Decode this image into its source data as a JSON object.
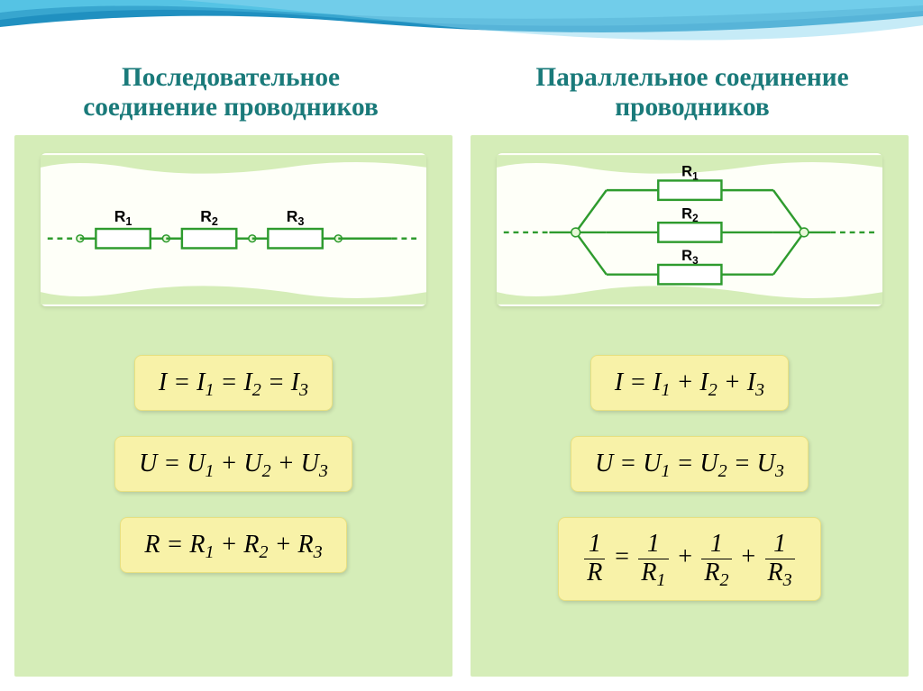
{
  "colors": {
    "header_text": "#1a7a7a",
    "header_fontsize_pt": 22,
    "header_fontweight": "bold",
    "panel_bg": "#d5edb8",
    "diagram_bg": "#fefff8",
    "diagram_shadow": "#c8e0a8",
    "formula_bg": "#f8f2a8",
    "formula_border": "#e8e080",
    "formula_text": "#000000",
    "formula_fontsize_pt": 21,
    "resistor_stroke": "#2e9b2e",
    "resistor_fill": "#ffffff",
    "wire_color": "#2e9b2e",
    "node_fill": "#e8f8d8",
    "dash_color": "#2e9b2e",
    "label_color": "#000000",
    "wave_colors": [
      "#5bc8e8",
      "#3ba8d0",
      "#2090c0",
      "#8dd8f0"
    ]
  },
  "left": {
    "title_line1": "Последовательное",
    "title_line2": "соединение проводников",
    "circuit": {
      "type": "series",
      "resistors": [
        "R₁",
        "R₂",
        "R₃"
      ],
      "stroke_width": 2.5,
      "resistor_w": 62,
      "resistor_h": 22,
      "node_radius": 4
    },
    "formulas": [
      {
        "type": "plain",
        "text": "I = I₁ = I₂ = I₃"
      },
      {
        "type": "plain",
        "text": "U = U₁ + U₂ + U₃"
      },
      {
        "type": "plain",
        "text": "R = R₁ + R₂ + R₃"
      }
    ]
  },
  "right": {
    "title_line1": "Параллельное соединение",
    "title_line2": "проводников",
    "circuit": {
      "type": "parallel",
      "resistors": [
        "R₁",
        "R₂",
        "R₃"
      ],
      "stroke_width": 2.5,
      "resistor_w": 72,
      "resistor_h": 22,
      "node_radius": 5,
      "row_gap": 48
    },
    "formulas": [
      {
        "type": "plain",
        "text": "I = I₁ + I₂ + I₃"
      },
      {
        "type": "plain",
        "text": "U = U₁ = U₂ = U₃"
      },
      {
        "type": "frac",
        "lhs_num": "1",
        "lhs_den": "R",
        "rhs": [
          {
            "num": "1",
            "den": "R₁"
          },
          {
            "num": "1",
            "den": "R₂"
          },
          {
            "num": "1",
            "den": "R₃"
          }
        ]
      }
    ]
  }
}
